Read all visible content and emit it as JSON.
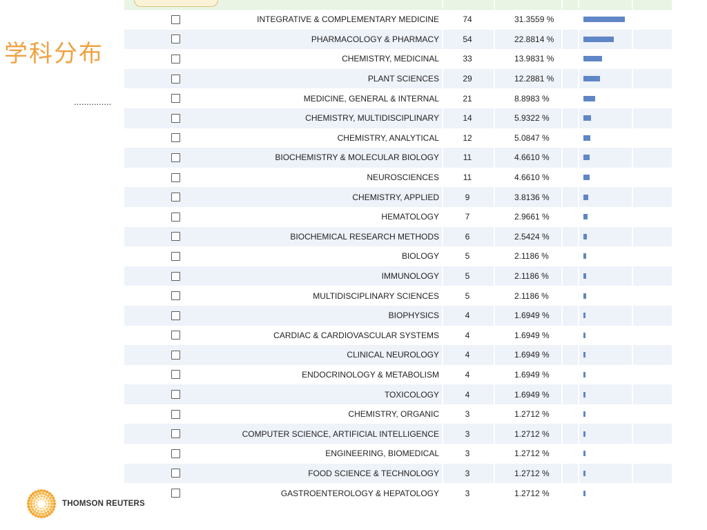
{
  "slide": {
    "title": "学科分布",
    "dots": "..............."
  },
  "logo": {
    "text": "THOMSON REUTERS"
  },
  "table": {
    "bar_max_percent": 31.3559,
    "rows": [
      {
        "label": "INTEGRATIVE & COMPLEMENTARY MEDICINE",
        "count": "74",
        "percent": "31.3559 %",
        "value": 31.3559
      },
      {
        "label": "PHARMACOLOGY & PHARMACY",
        "count": "54",
        "percent": "22.8814 %",
        "value": 22.8814
      },
      {
        "label": "CHEMISTRY, MEDICINAL",
        "count": "33",
        "percent": "13.9831 %",
        "value": 13.9831
      },
      {
        "label": "PLANT SCIENCES",
        "count": "29",
        "percent": "12.2881 %",
        "value": 12.2881
      },
      {
        "label": "MEDICINE, GENERAL & INTERNAL",
        "count": "21",
        "percent": "8.8983 %",
        "value": 8.8983
      },
      {
        "label": "CHEMISTRY, MULTIDISCIPLINARY",
        "count": "14",
        "percent": "5.9322 %",
        "value": 5.9322
      },
      {
        "label": "CHEMISTRY, ANALYTICAL",
        "count": "12",
        "percent": "5.0847 %",
        "value": 5.0847
      },
      {
        "label": "BIOCHEMISTRY & MOLECULAR BIOLOGY",
        "count": "11",
        "percent": "4.6610 %",
        "value": 4.661
      },
      {
        "label": "NEUROSCIENCES",
        "count": "11",
        "percent": "4.6610 %",
        "value": 4.661
      },
      {
        "label": "CHEMISTRY, APPLIED",
        "count": "9",
        "percent": "3.8136 %",
        "value": 3.8136
      },
      {
        "label": "HEMATOLOGY",
        "count": "7",
        "percent": "2.9661 %",
        "value": 2.9661
      },
      {
        "label": "BIOCHEMICAL RESEARCH METHODS",
        "count": "6",
        "percent": "2.5424 %",
        "value": 2.5424
      },
      {
        "label": "BIOLOGY",
        "count": "5",
        "percent": "2.1186 %",
        "value": 2.1186
      },
      {
        "label": "IMMUNOLOGY",
        "count": "5",
        "percent": "2.1186 %",
        "value": 2.1186
      },
      {
        "label": "MULTIDISCIPLINARY SCIENCES",
        "count": "5",
        "percent": "2.1186 %",
        "value": 2.1186
      },
      {
        "label": "BIOPHYSICS",
        "count": "4",
        "percent": "1.6949 %",
        "value": 1.6949
      },
      {
        "label": "CARDIAC & CARDIOVASCULAR SYSTEMS",
        "count": "4",
        "percent": "1.6949 %",
        "value": 1.6949
      },
      {
        "label": "CLINICAL NEUROLOGY",
        "count": "4",
        "percent": "1.6949 %",
        "value": 1.6949
      },
      {
        "label": "ENDOCRINOLOGY & METABOLISM",
        "count": "4",
        "percent": "1.6949 %",
        "value": 1.6949
      },
      {
        "label": "TOXICOLOGY",
        "count": "4",
        "percent": "1.6949 %",
        "value": 1.6949
      },
      {
        "label": "CHEMISTRY, ORGANIC",
        "count": "3",
        "percent": "1.2712 %",
        "value": 1.2712
      },
      {
        "label": "COMPUTER SCIENCE, ARTIFICIAL INTELLIGENCE",
        "count": "3",
        "percent": "1.2712 %",
        "value": 1.2712
      },
      {
        "label": "ENGINEERING, BIOMEDICAL",
        "count": "3",
        "percent": "1.2712 %",
        "value": 1.2712
      },
      {
        "label": "FOOD SCIENCE & TECHNOLOGY",
        "count": "3",
        "percent": "1.2712 %",
        "value": 1.2712
      },
      {
        "label": "GASTROENTEROLOGY & HEPATOLOGY",
        "count": "3",
        "percent": "1.2712 %",
        "value": 1.2712
      }
    ]
  },
  "colors": {
    "title": "#f0a140",
    "bar": "#5f86c6",
    "row_shade": "#eef2f9",
    "header": "#eaf4e4"
  },
  "icons": {
    "logo": "thomson-reuters-logo-icon"
  }
}
